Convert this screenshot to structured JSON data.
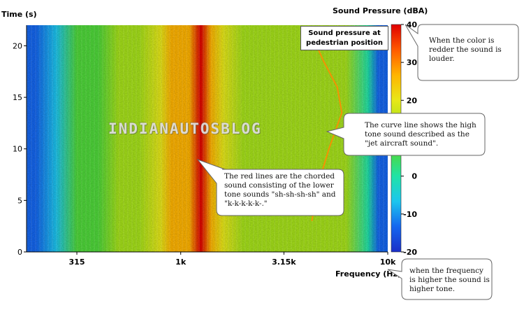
{
  "chart_data": {
    "type": "heatmap",
    "xlabel": "Frequency (Hz)",
    "ylabel": "Time (s)",
    "colorbar_label": "Sound Pressure (dBA)",
    "x_scale": "log",
    "xlim": [
      180,
      10000
    ],
    "ylim": [
      0,
      22
    ],
    "x_ticks": [
      {
        "value": 315,
        "label": "315"
      },
      {
        "value": 1000,
        "label": "1k"
      },
      {
        "value": 3150,
        "label": "3.15k"
      },
      {
        "value": 10000,
        "label": "10k"
      }
    ],
    "y_ticks": [
      0,
      5,
      10,
      15,
      20
    ],
    "colorbar_range": [
      -20,
      40
    ],
    "colorbar_ticks": [
      40,
      30,
      20,
      10,
      0,
      -10,
      -20
    ],
    "colormap": [
      "#1b2fc8",
      "#1466ef",
      "#1cc6ee",
      "#20e3a6",
      "#4fd83a",
      "#a6e21a",
      "#e8e818",
      "#ffb400",
      "#ff5a00",
      "#e00000"
    ],
    "profile": [
      {
        "freq": 180,
        "dba": -12
      },
      {
        "freq": 200,
        "dba": -11
      },
      {
        "freq": 250,
        "dba": -4
      },
      {
        "freq": 315,
        "dba": 4
      },
      {
        "freq": 400,
        "dba": 9
      },
      {
        "freq": 500,
        "dba": 12
      },
      {
        "freq": 630,
        "dba": 16
      },
      {
        "freq": 800,
        "dba": 22
      },
      {
        "freq": 900,
        "dba": 26
      },
      {
        "freq": 1000,
        "dba": 24
      },
      {
        "freq": 1100,
        "dba": 27
      },
      {
        "freq": 1250,
        "dba": 37
      },
      {
        "freq": 1400,
        "dba": 24
      },
      {
        "freq": 1600,
        "dba": 17
      },
      {
        "freq": 2000,
        "dba": 16
      },
      {
        "freq": 2500,
        "dba": 14
      },
      {
        "freq": 3150,
        "dba": 13
      },
      {
        "freq": 4000,
        "dba": 13
      },
      {
        "freq": 5000,
        "dba": 11
      },
      {
        "freq": 6300,
        "dba": 10
      },
      {
        "freq": 8000,
        "dba": 2
      },
      {
        "freq": 9000,
        "dba": -13
      },
      {
        "freq": 10000,
        "dba": -16
      }
    ],
    "curve_line": [
      {
        "freq": 4300,
        "time": 3
      },
      {
        "freq": 4600,
        "time": 6.5
      },
      {
        "freq": 5200,
        "time": 10
      },
      {
        "freq": 6000,
        "time": 13.5
      },
      {
        "freq": 5700,
        "time": 16
      },
      {
        "freq": 4900,
        "time": 18.5
      },
      {
        "freq": 4200,
        "time": 21.5
      }
    ]
  },
  "plot_caption": {
    "line1": "Sound pressure at",
    "line2": "pedestrian position"
  },
  "watermark": "IndianAutosBlog",
  "annotations": {
    "color": "When the color is redder the sound is louder.",
    "curve": "The curve line shows the high tone sound described as the \"jet aircraft sound\".",
    "red_lines": "The red lines are the chorded sound consisting of the lower tone sounds \"sh-sh-sh-sh\" and \"k-k-k-k-k-.\"",
    "frequency": "when the frequency is higher the sound is higher tone."
  }
}
